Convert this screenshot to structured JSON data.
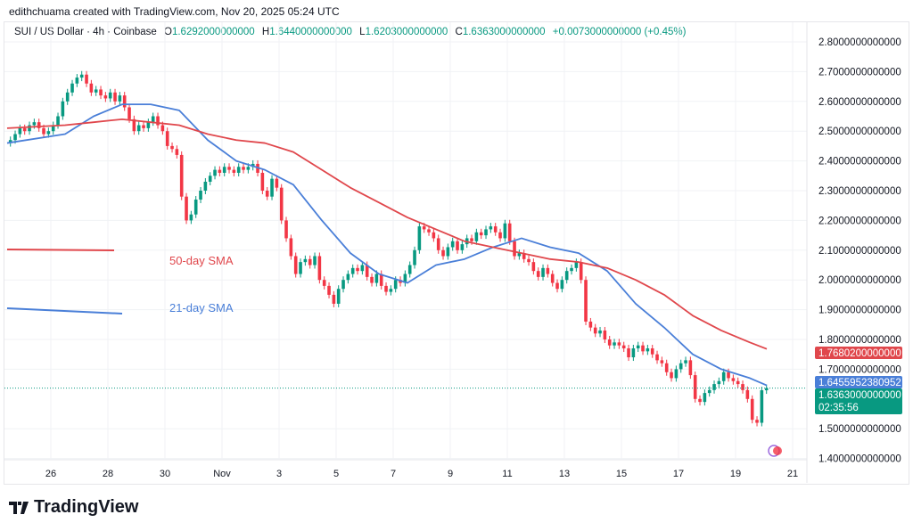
{
  "credit": "edithchuama created with TradingView.com, Nov 20, 2025 05:24 UTC",
  "legend": {
    "symbol": "SUI / US Dollar · 4h · Coinbase",
    "o_label": "O",
    "o": "1.6292000000000",
    "h_label": "H",
    "h": "1.6440000000000",
    "l_label": "L",
    "l": "1.6203000000000",
    "c_label": "C",
    "c": "1.6363000000000",
    "change": "+0.0073000000000 (+0.45%)"
  },
  "annotations": {
    "sma50": "50-day SMA",
    "sma21": "21-day SMA"
  },
  "price_labels": {
    "sma50": "1.7680200000000",
    "sma21": "1.6455952380952",
    "last": "1.6363000000000",
    "countdown": "02:35:56"
  },
  "brand": "TradingView",
  "colors": {
    "up": "#089981",
    "down": "#f23645",
    "sma50": "#e0474c",
    "sma21": "#4a7fd8",
    "last": "#089981"
  },
  "chart_data": {
    "type": "candlestick",
    "ylim": [
      1.4,
      2.8
    ],
    "yticks": [
      "2.8000000000000",
      "2.7000000000000",
      "2.6000000000000",
      "2.5000000000000",
      "2.4000000000000",
      "2.3000000000000",
      "2.2000000000000",
      "2.1000000000000",
      "2.0000000000000",
      "1.9000000000000",
      "1.8000000000000",
      "1.7000000000000",
      "1.5000000000000",
      "1.4000000000000"
    ],
    "xticks": [
      "26",
      "28",
      "30",
      "Nov",
      "3",
      "5",
      "7",
      "9",
      "11",
      "13",
      "15",
      "17",
      "19",
      "21"
    ],
    "start": "2025-10-24T12:00",
    "interval": "4h",
    "open_first": 2.46,
    "close": [
      2.47,
      2.49,
      2.51,
      2.5,
      2.52,
      2.53,
      2.51,
      2.49,
      2.5,
      2.52,
      2.55,
      2.6,
      2.63,
      2.66,
      2.68,
      2.69,
      2.66,
      2.63,
      2.64,
      2.62,
      2.61,
      2.63,
      2.6,
      2.62,
      2.58,
      2.54,
      2.5,
      2.52,
      2.51,
      2.53,
      2.55,
      2.52,
      2.5,
      2.45,
      2.44,
      2.42,
      2.28,
      2.2,
      2.22,
      2.27,
      2.3,
      2.33,
      2.35,
      2.37,
      2.36,
      2.38,
      2.37,
      2.36,
      2.38,
      2.37,
      2.38,
      2.39,
      2.36,
      2.3,
      2.28,
      2.34,
      2.31,
      2.2,
      2.14,
      2.08,
      2.02,
      2.06,
      2.07,
      2.05,
      2.08,
      2.0,
      1.98,
      1.95,
      1.92,
      1.97,
      2.0,
      2.02,
      2.04,
      2.03,
      2.05,
      2.01,
      1.99,
      2.02,
      1.98,
      1.96,
      1.97,
      2.0,
      1.99,
      2.02,
      2.05,
      2.1,
      2.18,
      2.17,
      2.16,
      2.14,
      2.1,
      2.08,
      2.11,
      2.13,
      2.1,
      2.12,
      2.14,
      2.13,
      2.16,
      2.15,
      2.17,
      2.18,
      2.16,
      2.14,
      2.19,
      2.13,
      2.08,
      2.09,
      2.07,
      2.06,
      2.03,
      2.01,
      2.04,
      2.02,
      1.99,
      1.97,
      2.0,
      2.03,
      2.04,
      2.06,
      2.0,
      1.86,
      1.84,
      1.82,
      1.83,
      1.8,
      1.78,
      1.79,
      1.78,
      1.77,
      1.74,
      1.77,
      1.78,
      1.76,
      1.77,
      1.75,
      1.73,
      1.72,
      1.69,
      1.67,
      1.7,
      1.72,
      1.73,
      1.68,
      1.6,
      1.59,
      1.62,
      1.63,
      1.65,
      1.66,
      1.69,
      1.67,
      1.66,
      1.65,
      1.63,
      1.6,
      1.53,
      1.52,
      1.6292,
      1.6363
    ],
    "series": [
      {
        "name": "21-day SMA",
        "dates": [
          "10-25",
          "10-26",
          "10-27",
          "10-28",
          "10-29",
          "10-30",
          "10-31",
          "11-01",
          "11-02",
          "11-03",
          "11-04",
          "11-05",
          "11-06",
          "11-07",
          "11-08",
          "11-09",
          "11-10",
          "11-11",
          "11-12",
          "11-13",
          "11-14",
          "11-15",
          "11-16",
          "11-17",
          "11-18",
          "11-19",
          "11-20"
        ],
        "values": [
          2.46,
          2.49,
          2.55,
          2.59,
          2.59,
          2.57,
          2.47,
          2.4,
          2.37,
          2.32,
          2.2,
          2.09,
          2.02,
          1.99,
          2.05,
          2.07,
          2.11,
          2.14,
          2.11,
          2.09,
          2.03,
          1.92,
          1.84,
          1.75,
          1.7,
          1.67,
          1.6456
        ]
      },
      {
        "name": "50-day SMA",
        "dates": [
          "10-25",
          "10-26",
          "10-27",
          "10-28",
          "10-29",
          "10-30",
          "10-31",
          "11-01",
          "11-02",
          "11-03",
          "11-04",
          "11-05",
          "11-06",
          "11-07",
          "11-08",
          "11-09",
          "11-10",
          "11-11",
          "11-12",
          "11-13",
          "11-14",
          "11-15",
          "11-16",
          "11-17",
          "11-18",
          "11-19",
          "11-20"
        ],
        "values": [
          2.51,
          2.52,
          2.53,
          2.54,
          2.53,
          2.52,
          2.49,
          2.47,
          2.46,
          2.43,
          2.37,
          2.31,
          2.26,
          2.21,
          2.17,
          2.13,
          2.11,
          2.09,
          2.07,
          2.06,
          2.04,
          2.0,
          1.95,
          1.88,
          1.83,
          1.79,
          1.768
        ]
      }
    ]
  }
}
